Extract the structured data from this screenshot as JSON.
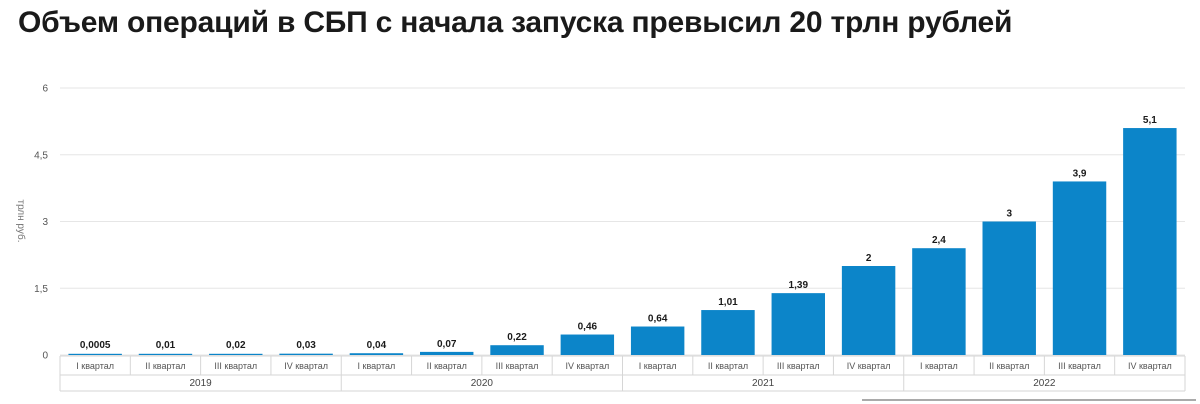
{
  "title": "Объем операций в СБП с начала запуска превысил 20 трлн рублей",
  "chart_data": {
    "type": "bar",
    "ylabel": "трлн руб.",
    "ylim": [
      0,
      6
    ],
    "yticks": [
      "0",
      "1,5",
      "3",
      "4,5",
      "6"
    ],
    "ytick_values": [
      0,
      1.5,
      3,
      4.5,
      6
    ],
    "grid": true,
    "color": "#0c85c9",
    "categories": [
      "I квартал",
      "II квартал",
      "III квартал",
      "IV квартал",
      "I квартал",
      "II квартал",
      "III квартал",
      "IV квартал",
      "I квартал",
      "II квартал",
      "III квартал",
      "IV квартал",
      "I квартал",
      "II квартал",
      "III квартал",
      "IV квартал"
    ],
    "groups": [
      {
        "label": "2019",
        "count": 4
      },
      {
        "label": "2020",
        "count": 4
      },
      {
        "label": "2021",
        "count": 4
      },
      {
        "label": "2022",
        "count": 4
      }
    ],
    "values": [
      0.0005,
      0.01,
      0.02,
      0.03,
      0.04,
      0.07,
      0.22,
      0.46,
      0.64,
      1.01,
      1.39,
      2,
      2.4,
      3,
      3.9,
      5.1
    ],
    "value_labels": [
      "0,0005",
      "0,01",
      "0,02",
      "0,03",
      "0,04",
      "0,07",
      "0,22",
      "0,46",
      "0,64",
      "1,01",
      "1,39",
      "2",
      "2,4",
      "3",
      "3,9",
      "5,1"
    ]
  }
}
